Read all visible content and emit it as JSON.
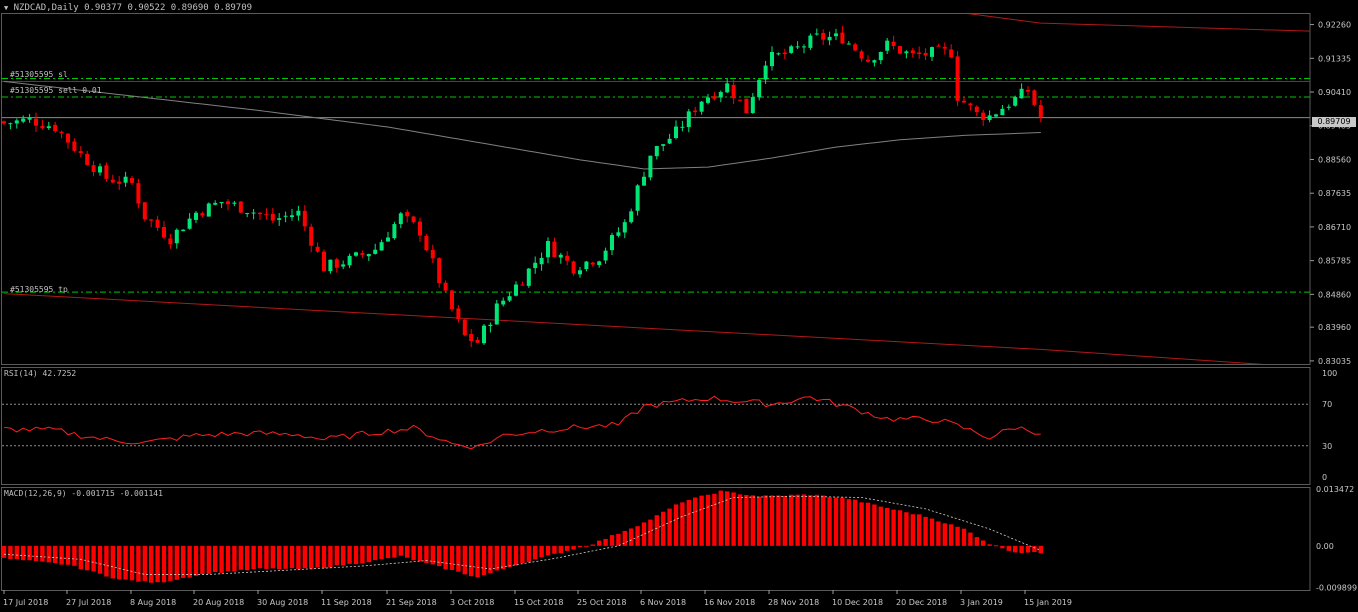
{
  "window": {
    "symbol_label": "NZDCAD,Daily",
    "ohlc_label": "0.90377 0.90522 0.89690 0.89709",
    "current_price_label": "0.89709"
  },
  "lines": {
    "sl_label": "#51305595 sl",
    "sell_label": "#51305595 sell 0.01",
    "tp_label": "#51305595 tp",
    "sl_price": 0.9078,
    "sell_price": 0.90275,
    "tp_price": 0.8492,
    "current_price": 0.89709
  },
  "colors": {
    "bull": "#00e676",
    "bear": "#ff0000",
    "grid_green": "#00c800",
    "trend": "#b01818",
    "ma": "#808080",
    "rsi": "#ff2020",
    "macd": "#ff0000"
  },
  "chart_data": [
    {
      "type": "candlestick",
      "name": "main",
      "yticks": [
        "0.92260",
        "0.91335",
        "0.90410",
        "0.89485",
        "0.88560",
        "0.87635",
        "0.86710",
        "0.85785",
        "0.84860",
        "0.83960",
        "0.83035"
      ],
      "ylim": [
        0.8295,
        0.9255
      ],
      "xticks": [
        "17 Jul 2018",
        "27 Jul 2018",
        "8 Aug 2018",
        "20 Aug 2018",
        "30 Aug 2018",
        "11 Sep 2018",
        "21 Sep 2018",
        "3 Oct 2018",
        "15 Oct 2018",
        "25 Oct 2018",
        "6 Nov 2018",
        "16 Nov 2018",
        "28 Nov 2018",
        "10 Dec 2018",
        "20 Dec 2018",
        "3 Jan 2019",
        "15 Jan 2019"
      ],
      "close_anchors": [
        [
          0,
          0.8955
        ],
        [
          4,
          0.8965
        ],
        [
          8,
          0.8945
        ],
        [
          12,
          0.887
        ],
        [
          16,
          0.8805
        ],
        [
          20,
          0.879
        ],
        [
          22,
          0.87
        ],
        [
          26,
          0.864
        ],
        [
          30,
          0.871
        ],
        [
          34,
          0.874
        ],
        [
          38,
          0.872
        ],
        [
          42,
          0.869
        ],
        [
          46,
          0.871
        ],
        [
          50,
          0.856
        ],
        [
          54,
          0.858
        ],
        [
          58,
          0.861
        ],
        [
          62,
          0.87
        ],
        [
          65,
          0.866
        ],
        [
          69,
          0.848
        ],
        [
          72,
          0.837
        ],
        [
          74,
          0.8355
        ],
        [
          77,
          0.845
        ],
        [
          81,
          0.853
        ],
        [
          85,
          0.862
        ],
        [
          89,
          0.856
        ],
        [
          93,
          0.859
        ],
        [
          97,
          0.868
        ],
        [
          101,
          0.887
        ],
        [
          105,
          0.893
        ],
        [
          109,
          0.902
        ],
        [
          113,
          0.906
        ],
        [
          116,
          0.899
        ],
        [
          119,
          0.913
        ],
        [
          123,
          0.915
        ],
        [
          127,
          0.919
        ],
        [
          131,
          0.919
        ],
        [
          135,
          0.913
        ],
        [
          138,
          0.917
        ],
        [
          142,
          0.914
        ],
        [
          146,
          0.915
        ],
        [
          148,
          0.915
        ],
        [
          149,
          0.903
        ],
        [
          152,
          0.898
        ],
        [
          154,
          0.8975
        ],
        [
          157,
          0.901
        ],
        [
          160,
          0.9045
        ],
        [
          162,
          0.8971
        ]
      ],
      "ma_anchors": [
        [
          0,
          0.907
        ],
        [
          20,
          0.903
        ],
        [
          40,
          0.899
        ],
        [
          60,
          0.8945
        ],
        [
          75,
          0.89
        ],
        [
          90,
          0.8855
        ],
        [
          100,
          0.883
        ],
        [
          110,
          0.8835
        ],
        [
          120,
          0.886
        ],
        [
          130,
          0.889
        ],
        [
          140,
          0.891
        ],
        [
          150,
          0.8922
        ],
        [
          162,
          0.893
        ]
      ],
      "trend_upper": [
        [
          110,
          0.935
        ],
        [
          162,
          0.923
        ],
        [
          210,
          0.9205
        ]
      ],
      "trend_lower": [
        [
          0,
          0.8488
        ],
        [
          162,
          0.8335
        ],
        [
          200,
          0.829
        ]
      ]
    },
    {
      "type": "line",
      "name": "RSI",
      "title": "RSI(14) 42.7252",
      "yticks": [
        "100",
        "70",
        "30",
        "0"
      ],
      "levels": [
        70,
        30
      ],
      "ylim": [
        0,
        100
      ],
      "anchors": [
        [
          0,
          46
        ],
        [
          8,
          45
        ],
        [
          12,
          40
        ],
        [
          16,
          36
        ],
        [
          22,
          33
        ],
        [
          30,
          40
        ],
        [
          38,
          42
        ],
        [
          46,
          41
        ],
        [
          50,
          36
        ],
        [
          58,
          43
        ],
        [
          64,
          47
        ],
        [
          70,
          32
        ],
        [
          74,
          29
        ],
        [
          78,
          40
        ],
        [
          84,
          45
        ],
        [
          90,
          48
        ],
        [
          96,
          50
        ],
        [
          100,
          68
        ],
        [
          110,
          76
        ],
        [
          120,
          70
        ],
        [
          126,
          77
        ],
        [
          132,
          67
        ],
        [
          138,
          56
        ],
        [
          146,
          55
        ],
        [
          150,
          47
        ],
        [
          154,
          38
        ],
        [
          158,
          48
        ],
        [
          162,
          42.7
        ]
      ]
    },
    {
      "type": "bar",
      "name": "MACD",
      "title": "MACD(12,26,9) -0.001715 -0.001141",
      "yticks": [
        "0.013472",
        "0.00",
        "-0.009899"
      ],
      "ylim": [
        -0.0105,
        0.014
      ],
      "anchors": [
        [
          0,
          -0.003
        ],
        [
          10,
          -0.0045
        ],
        [
          18,
          -0.008
        ],
        [
          24,
          -0.0088
        ],
        [
          32,
          -0.0065
        ],
        [
          40,
          -0.0055
        ],
        [
          48,
          -0.0055
        ],
        [
          56,
          -0.004
        ],
        [
          62,
          -0.0025
        ],
        [
          68,
          -0.005
        ],
        [
          74,
          -0.0075
        ],
        [
          80,
          -0.0045
        ],
        [
          86,
          -0.002
        ],
        [
          92,
          0.0005
        ],
        [
          100,
          0.0055
        ],
        [
          106,
          0.0105
        ],
        [
          112,
          0.013
        ],
        [
          118,
          0.0118
        ],
        [
          126,
          0.0122
        ],
        [
          132,
          0.0112
        ],
        [
          138,
          0.009
        ],
        [
          144,
          0.007
        ],
        [
          150,
          0.004
        ],
        [
          154,
          0.0005
        ],
        [
          158,
          -0.0015
        ],
        [
          162,
          -0.0017
        ]
      ],
      "signal_anchors": [
        [
          0,
          -0.002
        ],
        [
          12,
          -0.0032
        ],
        [
          22,
          -0.0068
        ],
        [
          32,
          -0.0068
        ],
        [
          44,
          -0.0058
        ],
        [
          56,
          -0.0048
        ],
        [
          66,
          -0.0035
        ],
        [
          76,
          -0.0055
        ],
        [
          86,
          -0.003
        ],
        [
          96,
          0.0
        ],
        [
          106,
          0.007
        ],
        [
          114,
          0.0115
        ],
        [
          124,
          0.0118
        ],
        [
          134,
          0.0115
        ],
        [
          144,
          0.0088
        ],
        [
          154,
          0.004
        ],
        [
          162,
          -0.0011
        ]
      ]
    }
  ]
}
